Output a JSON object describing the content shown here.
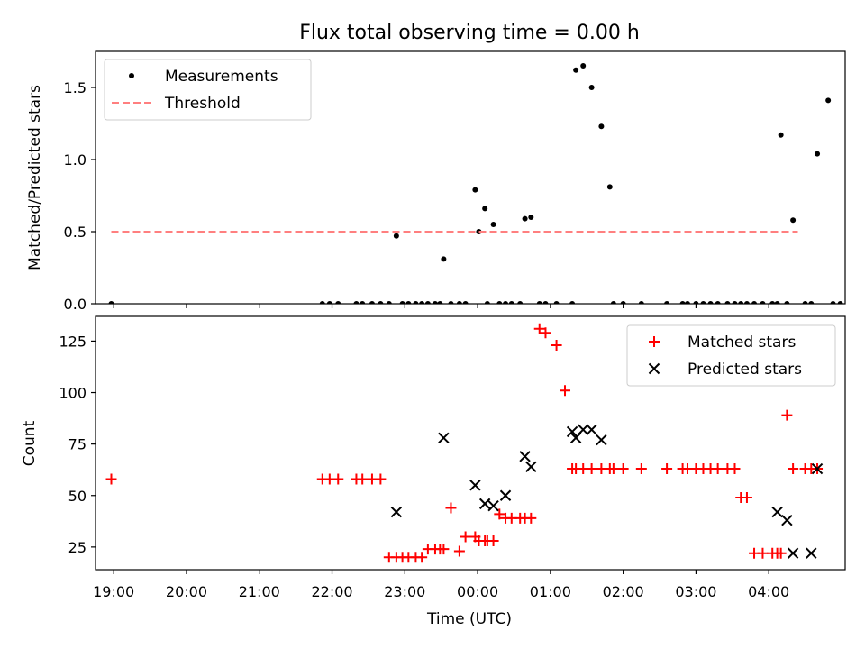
{
  "figure": {
    "title": "Flux total observing time = 0.00 h",
    "xlabel": "Time (UTC)",
    "xticks": [
      "19:00",
      "20:00",
      "21:00",
      "22:00",
      "23:00",
      "00:00",
      "01:00",
      "02:00",
      "03:00",
      "04:00"
    ]
  },
  "chart_data": [
    {
      "type": "scatter",
      "ylabel": "Matched/Predicted stars",
      "xlim": [
        "18:45",
        "05:03"
      ],
      "ylim": [
        0,
        1.75
      ],
      "yticks": [
        "0.0",
        "0.5",
        "1.0",
        "1.5"
      ],
      "legend": {
        "placement": "top-left",
        "entries": [
          "Measurements",
          "Threshold"
        ]
      },
      "series": [
        {
          "name": "Measurements",
          "x": [
            "18:58",
            "21:52",
            "21:58",
            "22:05",
            "22:20",
            "22:25",
            "22:33",
            "22:40",
            "22:47",
            "22:53",
            "22:58",
            "23:03",
            "23:09",
            "23:14",
            "23:19",
            "23:25",
            "23:29",
            "23:32",
            "23:38",
            "23:45",
            "23:50",
            "23:58",
            "00:01",
            "00:06",
            "00:08",
            "00:13",
            "00:18",
            "00:23",
            "00:28",
            "00:35",
            "00:39",
            "00:44",
            "00:51",
            "00:56",
            "01:05",
            "01:18",
            "01:21",
            "01:27",
            "01:34",
            "01:42",
            "01:49",
            "01:52",
            "02:00",
            "02:15",
            "02:36",
            "02:49",
            "02:53",
            "03:00",
            "03:06",
            "03:12",
            "03:18",
            "03:26",
            "03:32",
            "03:37",
            "03:42",
            "03:48",
            "03:55",
            "04:03",
            "04:07",
            "04:10",
            "04:15",
            "04:20",
            "04:30",
            "04:35",
            "04:40",
            "04:49",
            "04:53",
            "04:59"
          ],
          "y": [
            0,
            0,
            0,
            0,
            0,
            0,
            0,
            0,
            0,
            0.47,
            0,
            0,
            0,
            0,
            0,
            0,
            0,
            0.31,
            0,
            0,
            0,
            0.79,
            0.5,
            0.66,
            0,
            0.55,
            0,
            0,
            0,
            0,
            0.59,
            0.6,
            0,
            0,
            0,
            0,
            1.62,
            1.65,
            1.5,
            1.23,
            0.81,
            0,
            0,
            0,
            0,
            0,
            0,
            0,
            0,
            0,
            0,
            0,
            0,
            0,
            0,
            0,
            0,
            0,
            0,
            1.17,
            0,
            0.58,
            0,
            0,
            1.04,
            1.41,
            0,
            0
          ]
        },
        {
          "name": "Threshold",
          "style": "dashed",
          "x": [
            "18:58",
            "04:24"
          ],
          "y": [
            0.5,
            0.5
          ]
        }
      ]
    },
    {
      "type": "scatter",
      "ylabel": "Count",
      "xlim": [
        "18:45",
        "05:03"
      ],
      "ylim": [
        14,
        137
      ],
      "yticks": [
        "25",
        "50",
        "75",
        "100",
        "125"
      ],
      "legend": {
        "placement": "top-right",
        "entries": [
          "Matched stars",
          "Predicted stars"
        ]
      },
      "series": [
        {
          "name": "Matched stars",
          "marker": "+",
          "x": [
            "18:58",
            "21:52",
            "21:58",
            "22:05",
            "22:20",
            "22:25",
            "22:33",
            "22:40",
            "22:47",
            "22:53",
            "22:58",
            "23:03",
            "23:09",
            "23:14",
            "23:19",
            "23:25",
            "23:29",
            "23:32",
            "23:38",
            "23:45",
            "23:50",
            "23:58",
            "00:01",
            "00:06",
            "00:08",
            "00:13",
            "00:18",
            "00:23",
            "00:28",
            "00:35",
            "00:39",
            "00:44",
            "00:51",
            "00:56",
            "01:05",
            "01:12",
            "01:18",
            "01:21",
            "01:27",
            "01:34",
            "01:42",
            "01:49",
            "01:52",
            "02:00",
            "02:15",
            "02:36",
            "02:49",
            "02:53",
            "03:00",
            "03:06",
            "03:12",
            "03:18",
            "03:26",
            "03:32",
            "03:37",
            "03:42",
            "03:48",
            "03:55",
            "04:03",
            "04:07",
            "04:10",
            "04:15",
            "04:20",
            "04:30",
            "04:35",
            "04:40"
          ],
          "y": [
            58,
            58,
            58,
            58,
            58,
            58,
            58,
            58,
            20,
            20,
            20,
            20,
            20,
            20,
            24,
            24,
            24,
            24,
            44,
            23,
            30,
            30,
            28,
            28,
            28,
            28,
            41,
            39,
            39,
            39,
            39,
            39,
            131,
            129,
            123,
            101,
            63,
            63,
            63,
            63,
            63,
            63,
            63,
            63,
            63,
            63,
            63,
            63,
            63,
            63,
            63,
            63,
            63,
            63,
            49,
            49,
            22,
            22,
            22,
            22,
            22,
            89,
            63,
            63,
            63,
            63
          ]
        },
        {
          "name": "Predicted stars",
          "marker": "x",
          "x": [
            "22:53",
            "23:32",
            "23:58",
            "00:06",
            "00:13",
            "00:23",
            "00:39",
            "00:44",
            "01:18",
            "01:21",
            "01:27",
            "01:34",
            "01:42",
            "04:07",
            "04:15",
            "04:20",
            "04:35",
            "04:40"
          ],
          "y": [
            42,
            78,
            55,
            46,
            45,
            50,
            69,
            64,
            81,
            78,
            82,
            82,
            77,
            42,
            38,
            22,
            22,
            63
          ]
        }
      ]
    }
  ]
}
